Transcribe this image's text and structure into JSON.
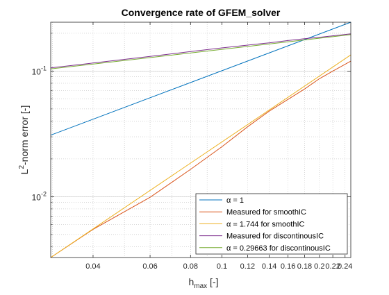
{
  "chart_data": {
    "type": "line",
    "title": "Convergence rate of GFEM_solver",
    "xlabel": {
      "main": "h",
      "sub": "max",
      "unit": " [-]"
    },
    "ylabel": {
      "prefix": "L",
      "sup": "2",
      "rest": "-norm error [-]"
    },
    "x_scale": "log",
    "y_scale": "log",
    "xlim": [
      0.0296,
      0.25
    ],
    "ylim": [
      0.00328,
      0.245
    ],
    "grid": true,
    "minor_grid": true,
    "x_ticks": [
      {
        "v": 0.04,
        "label": "0.04"
      },
      {
        "v": 0.06,
        "label": "0.06"
      },
      {
        "v": 0.08,
        "label": "0.08"
      },
      {
        "v": 0.1,
        "label": "0.1"
      },
      {
        "v": 0.12,
        "label": "0.12"
      },
      {
        "v": 0.14,
        "label": "0.14"
      },
      {
        "v": 0.16,
        "label": "0.16"
      },
      {
        "v": 0.18,
        "label": "0.18"
      },
      {
        "v": 0.2,
        "label": "0.2"
      },
      {
        "v": 0.22,
        "label": "0.22"
      },
      {
        "v": 0.24,
        "label": "0.24"
      }
    ],
    "y_ticks": [
      {
        "v": 0.01,
        "base": "10",
        "exp": "-2"
      },
      {
        "v": 0.1,
        "base": "10",
        "exp": "-1"
      }
    ],
    "legend_position": "bottom-right",
    "series": [
      {
        "name": "α = 1",
        "color": "#0072BD",
        "x": [
          0.0296,
          0.25
        ],
        "y": [
          0.0309,
          0.245
        ]
      },
      {
        "name": "Measured for smoothIC",
        "color": "#D95319",
        "x": [
          0.0296,
          0.04,
          0.06,
          0.08,
          0.1,
          0.12,
          0.14,
          0.16,
          0.18,
          0.2,
          0.22,
          0.25
        ],
        "y": [
          0.00328,
          0.0055,
          0.0099,
          0.0165,
          0.025,
          0.036,
          0.048,
          0.0595,
          0.072,
          0.087,
          0.1,
          0.12
        ]
      },
      {
        "name": "α = 1.744 for smoothIC",
        "color": "#EDB120",
        "x": [
          0.0296,
          0.25
        ],
        "y": [
          0.00328,
          0.1345
        ]
      },
      {
        "name": "Measured for discontinousIC",
        "color": "#7E2F8E",
        "x": [
          0.0296,
          0.04,
          0.06,
          0.08,
          0.1,
          0.12,
          0.14,
          0.16,
          0.18,
          0.2,
          0.22,
          0.25
        ],
        "y": [
          0.106,
          0.116,
          0.131,
          0.143,
          0.153,
          0.161,
          0.168,
          0.175,
          0.181,
          0.186,
          0.191,
          0.198
        ]
      },
      {
        "name": "α = 0.29663 for discontinousIC",
        "color": "#77AC30",
        "x": [
          0.0296,
          0.25
        ],
        "y": [
          0.104,
          0.195
        ]
      }
    ]
  }
}
